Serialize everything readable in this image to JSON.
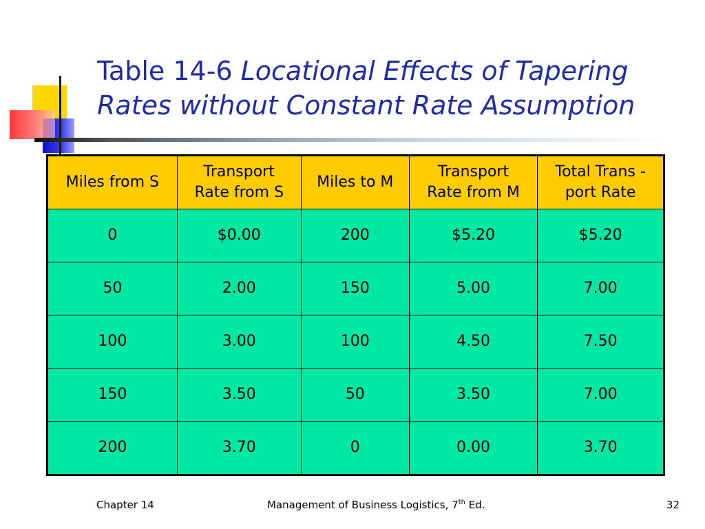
{
  "title": {
    "number": "Table 14-6",
    "line1": "Locational Effects of Tapering",
    "line2": "Rates without Constant Rate Assumption"
  },
  "table": {
    "headers": [
      [
        "Miles from S"
      ],
      [
        "Transport",
        "Rate from S"
      ],
      [
        "Miles to M"
      ],
      [
        "Transport",
        "Rate from M"
      ],
      [
        "Total Trans -",
        "port Rate"
      ]
    ],
    "rows": [
      [
        "0",
        "$0.00",
        "200",
        "$5.20",
        "$5.20"
      ],
      [
        "50",
        "2.00",
        "150",
        "5.00",
        "7.00"
      ],
      [
        "100",
        "3.00",
        "100",
        "4.50",
        "7.50"
      ],
      [
        "150",
        "3.50",
        "50",
        "3.50",
        "7.00"
      ],
      [
        "200",
        "3.70",
        "0",
        "0.00",
        "3.70"
      ]
    ]
  },
  "footer": {
    "left": "Chapter 14",
    "center_prefix": "Management of Business Logistics, 7",
    "center_sup": "th",
    "center_suffix": " Ed.",
    "page": "32"
  },
  "colors": {
    "title": "#1f2aa8",
    "header_fill": "#ffcc00",
    "body_fill": "#00e8a4"
  }
}
